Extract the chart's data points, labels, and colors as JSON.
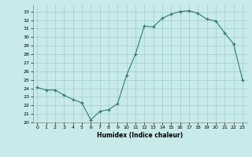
{
  "x": [
    0,
    1,
    2,
    3,
    4,
    5,
    6,
    7,
    8,
    9,
    10,
    11,
    12,
    13,
    14,
    15,
    16,
    17,
    18,
    19,
    20,
    21,
    22,
    23
  ],
  "y": [
    24.1,
    23.8,
    23.8,
    23.2,
    22.7,
    22.3,
    20.3,
    21.3,
    21.5,
    22.2,
    25.5,
    28.0,
    31.3,
    31.2,
    32.2,
    32.7,
    33.0,
    33.1,
    32.8,
    32.1,
    31.9,
    30.5,
    29.2,
    25.0
  ],
  "xlabel": "Humidex (Indice chaleur)",
  "xlim": [
    -0.5,
    23.5
  ],
  "ylim": [
    20,
    33.8
  ],
  "yticks": [
    20,
    21,
    22,
    23,
    24,
    25,
    26,
    27,
    28,
    29,
    30,
    31,
    32,
    33
  ],
  "xticks": [
    0,
    1,
    2,
    3,
    4,
    5,
    6,
    7,
    8,
    9,
    10,
    11,
    12,
    13,
    14,
    15,
    16,
    17,
    18,
    19,
    20,
    21,
    22,
    23
  ],
  "line_color": "#2d7d6e",
  "marker": "+",
  "marker_size": 3,
  "bg_color": "#c8eaea",
  "grid_color": "#a0cccc",
  "fig_bg": "#c8eaea"
}
